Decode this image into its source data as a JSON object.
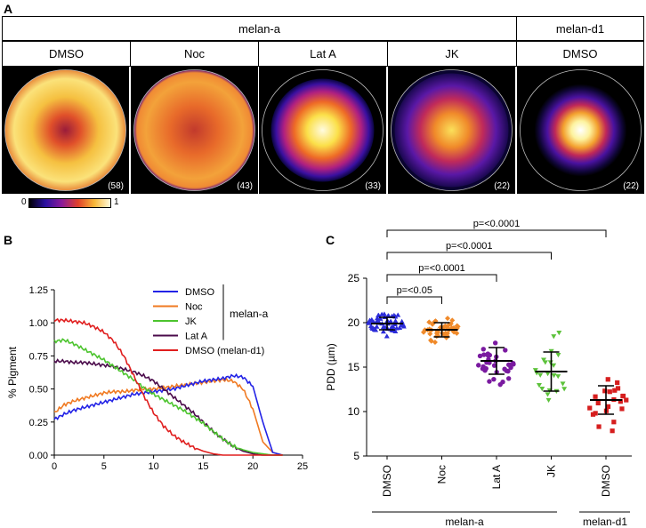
{
  "panel_a": {
    "letter": "A",
    "group_headers": [
      "melan-a",
      "melan-d1"
    ],
    "condition_headers": [
      "DMSO",
      "Noc",
      "Lat A",
      "JK",
      "DMSO"
    ],
    "image_counts": [
      "(58)",
      "(43)",
      "(33)",
      "(22)",
      "(22)"
    ],
    "colorbar": {
      "min": "0",
      "max": "1"
    }
  },
  "panel_b": {
    "letter": "B",
    "group_label": "melan-a"
  },
  "panel_c": {
    "letter": "C",
    "group_labels": [
      "melan-a",
      "melan-d1"
    ]
  },
  "colors": {
    "dmso": "#2323e6",
    "noc": "#f07a22",
    "jk": "#4cc42e",
    "lata": "#4a0a4a",
    "d1": "#e01e1e",
    "c_dmso": "#2b2bd9",
    "c_noc": "#f08a2a",
    "c_lata": "#7a1aa0",
    "c_jk": "#5cc23a",
    "c_d1": "#d61e1e"
  },
  "chart_data": [
    {
      "type": "line",
      "title": "",
      "xlabel": "Radius (µm)",
      "ylabel": "% Pigment",
      "xlim": [
        0,
        25
      ],
      "ylim": [
        0,
        1.25
      ],
      "xticks": [
        "0",
        "5",
        "10",
        "15",
        "20",
        "25"
      ],
      "yticks": [
        "0.00",
        "0.25",
        "0.50",
        "0.75",
        "1.00",
        "1.25"
      ],
      "legend": [
        "DMSO",
        "Noc",
        "JK",
        "Lat A",
        "DMSO  (melan-d1)"
      ],
      "legend_position": "top-right",
      "x": [
        0,
        1,
        2,
        3,
        4,
        5,
        6,
        7,
        8,
        9,
        10,
        11,
        12,
        13,
        14,
        15,
        16,
        17,
        18,
        19,
        20,
        21,
        22,
        23
      ],
      "series": [
        {
          "name": "DMSO",
          "values": [
            0.27,
            0.31,
            0.34,
            0.36,
            0.38,
            0.4,
            0.42,
            0.44,
            0.46,
            0.47,
            0.48,
            0.49,
            0.5,
            0.52,
            0.54,
            0.56,
            0.57,
            0.58,
            0.6,
            0.59,
            0.52,
            0.25,
            0.02,
            0.0
          ]
        },
        {
          "name": "Noc",
          "values": [
            0.32,
            0.38,
            0.41,
            0.43,
            0.45,
            0.47,
            0.48,
            0.48,
            0.49,
            0.5,
            0.5,
            0.51,
            0.52,
            0.53,
            0.54,
            0.55,
            0.56,
            0.57,
            0.56,
            0.5,
            0.35,
            0.1,
            0.02,
            0.0
          ]
        },
        {
          "name": "JK",
          "values": [
            0.86,
            0.87,
            0.84,
            0.8,
            0.76,
            0.72,
            0.67,
            0.62,
            0.57,
            0.51,
            0.46,
            0.42,
            0.38,
            0.34,
            0.29,
            0.24,
            0.18,
            0.12,
            0.07,
            0.04,
            0.02,
            0.01,
            0.0,
            0.0
          ]
        },
        {
          "name": "Lat A",
          "values": [
            0.71,
            0.71,
            0.7,
            0.7,
            0.69,
            0.68,
            0.67,
            0.65,
            0.63,
            0.6,
            0.56,
            0.5,
            0.44,
            0.38,
            0.32,
            0.25,
            0.18,
            0.12,
            0.07,
            0.03,
            0.01,
            0.0,
            0.0,
            0.0
          ]
        },
        {
          "name": "DMSO  (melan-d1)",
          "values": [
            1.02,
            1.02,
            1.01,
            1.0,
            0.97,
            0.93,
            0.86,
            0.75,
            0.6,
            0.45,
            0.32,
            0.22,
            0.15,
            0.1,
            0.06,
            0.03,
            0.01,
            0.0,
            0.0,
            0.0,
            0.0,
            0.0,
            0.0,
            0.0
          ]
        }
      ]
    },
    {
      "type": "scatter",
      "title": "",
      "xlabel": "",
      "ylabel": "PDD (µm)",
      "ylim": [
        5,
        25
      ],
      "yticks": [
        "5",
        "10",
        "15",
        "20",
        "25"
      ],
      "categories": [
        "DMSO",
        "Noc",
        "Lat A",
        "JK",
        "DMSO"
      ],
      "groups": [
        {
          "name": "DMSO",
          "n": 58,
          "mean": 19.9,
          "sd": 0.7,
          "marker": "triangle-up"
        },
        {
          "name": "Noc",
          "n": 43,
          "mean": 19.2,
          "sd": 0.8,
          "marker": "diamond"
        },
        {
          "name": "Lat A",
          "n": 33,
          "mean": 15.7,
          "sd": 1.5,
          "marker": "circle"
        },
        {
          "name": "JK",
          "n": 22,
          "mean": 14.5,
          "sd": 2.2,
          "marker": "triangle-down"
        },
        {
          "name": "DMSO",
          "n": 22,
          "mean": 11.3,
          "sd": 1.6,
          "marker": "square"
        }
      ],
      "significance": [
        {
          "from": 0,
          "to": 1,
          "label": "p=<0.05"
        },
        {
          "from": 0,
          "to": 2,
          "label": "p=<0.0001"
        },
        {
          "from": 0,
          "to": 3,
          "label": "p=<0.0001"
        },
        {
          "from": 0,
          "to": 4,
          "label": "p=<0.0001"
        }
      ]
    }
  ]
}
